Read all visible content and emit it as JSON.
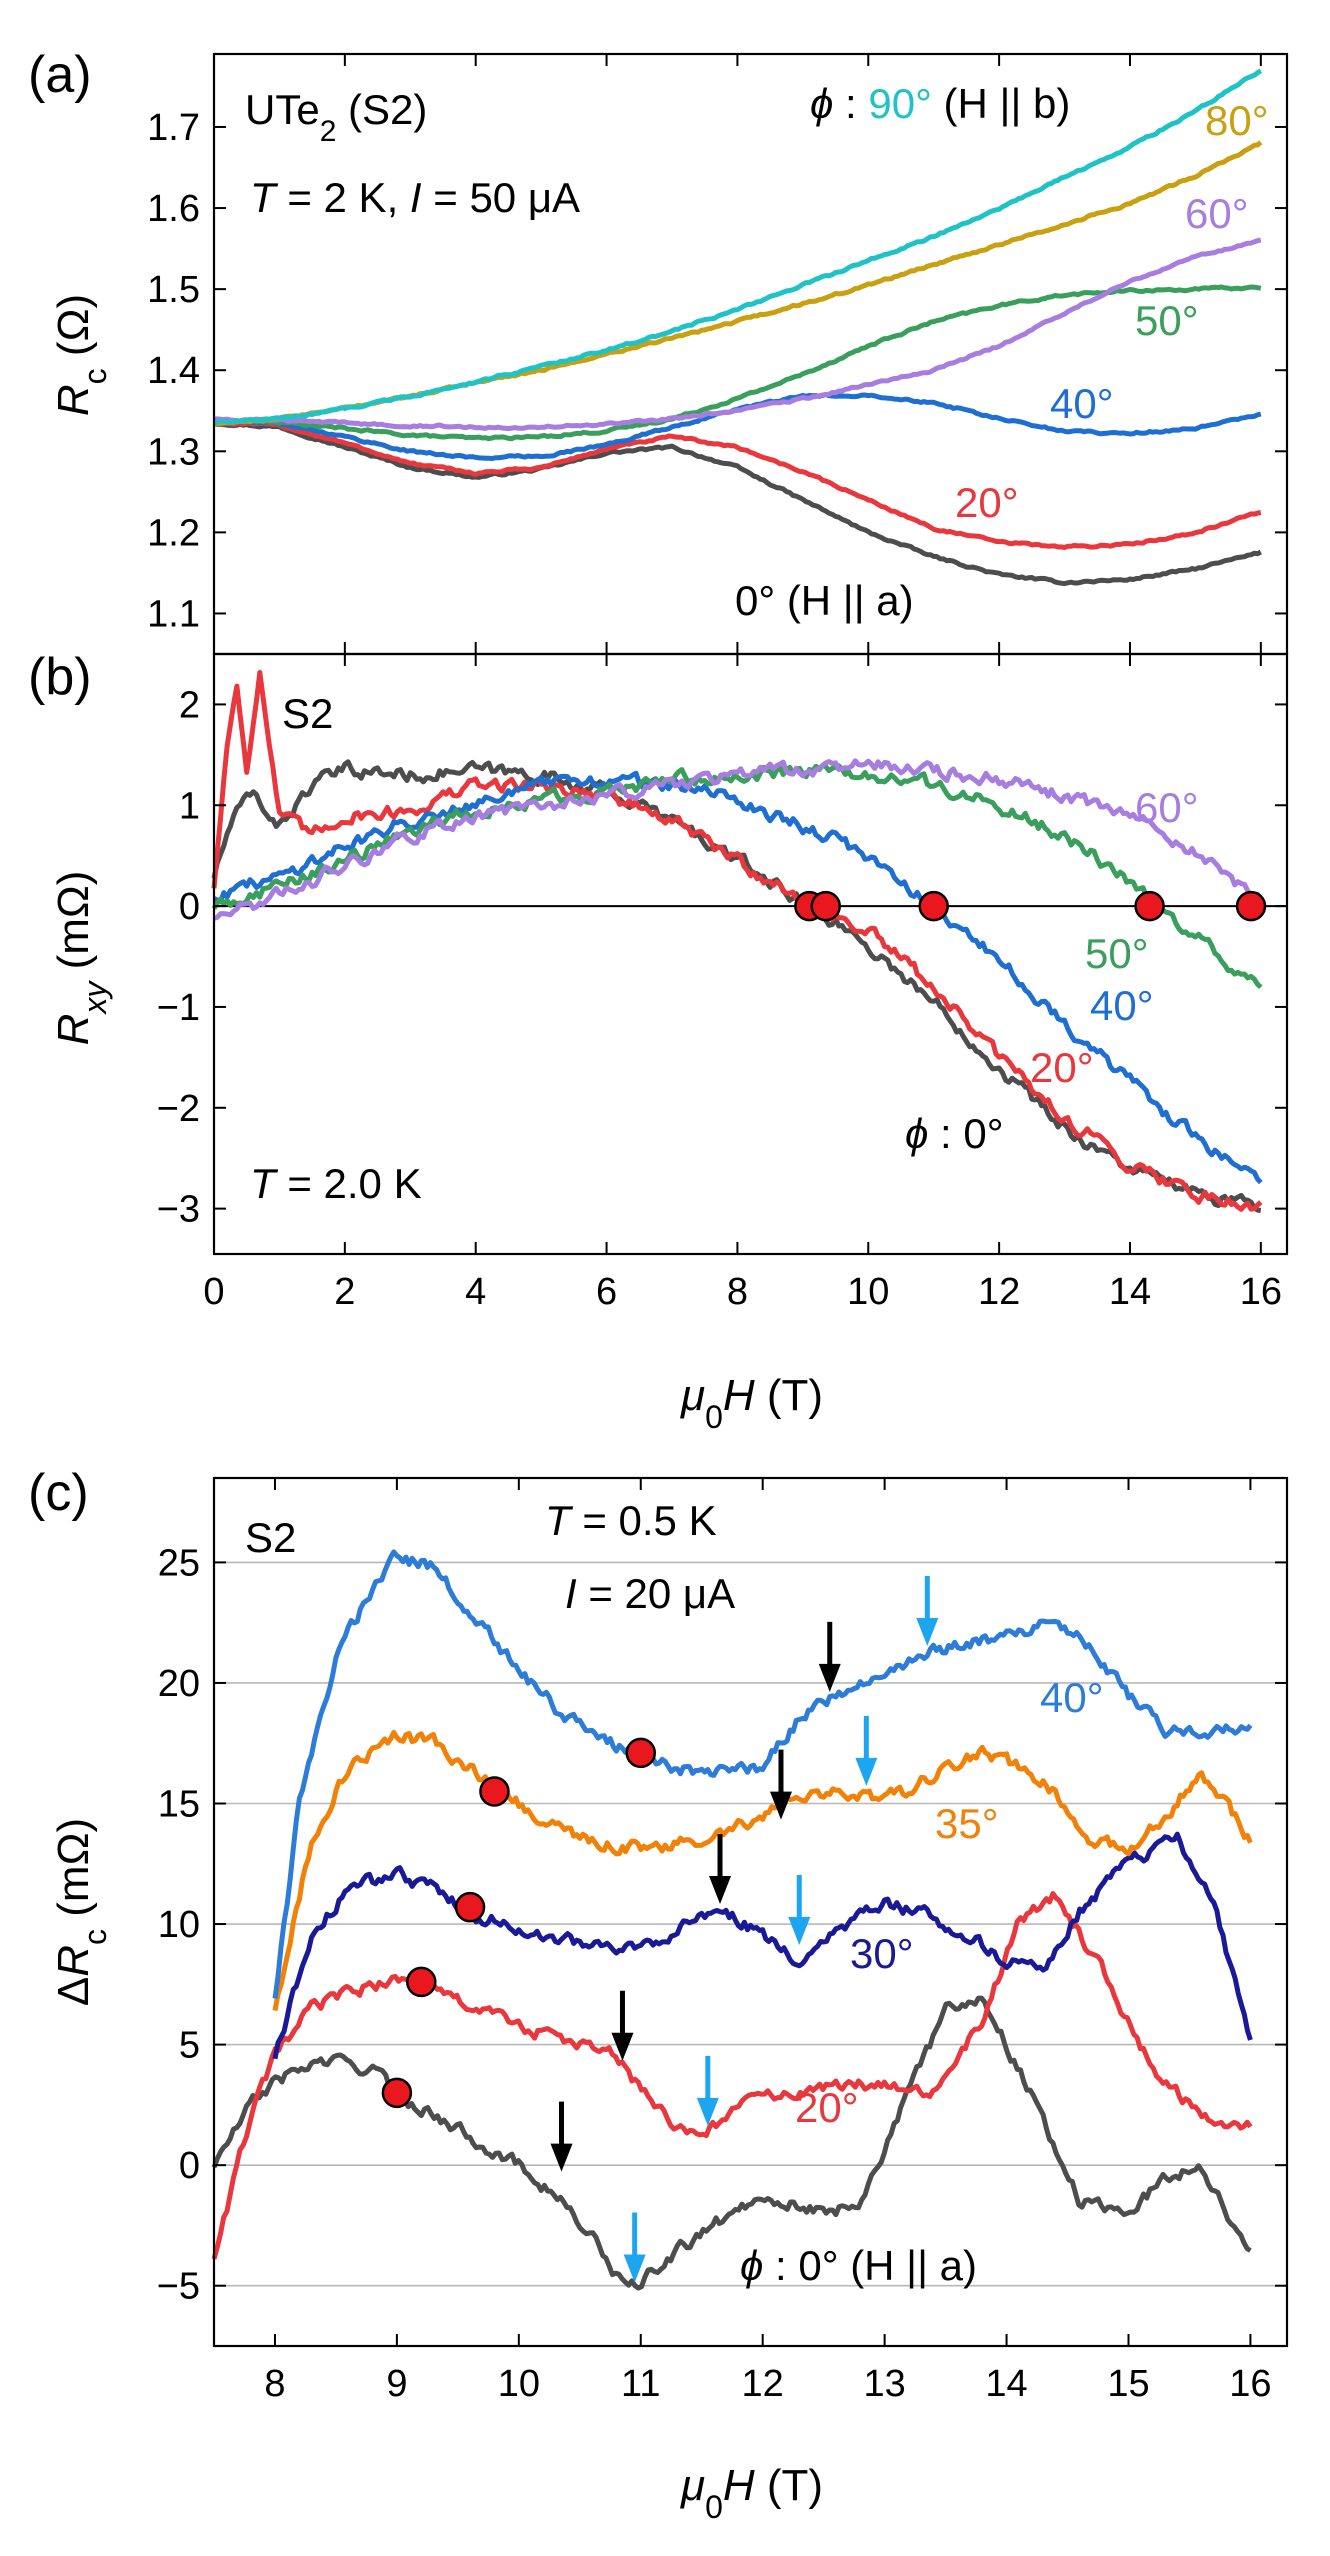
{
  "chart_data": [
    {
      "type": "line",
      "panel_label": "(a)",
      "ylabel": "R_c (Ω)",
      "ylabel_parts": {
        "sym": "R",
        "sub": "c",
        "unit": " (Ω)"
      },
      "xlim": [
        0,
        16.4
      ],
      "ylim": [
        1.05,
        1.79
      ],
      "xticks": [
        0,
        2,
        4,
        6,
        8,
        10,
        12,
        14,
        16
      ],
      "yticks": [
        1.1,
        1.2,
        1.3,
        1.4,
        1.5,
        1.6,
        1.7
      ],
      "ytick_labels": [
        "1.1",
        "1.2",
        "1.3",
        "1.4",
        "1.5",
        "1.6",
        "1.7"
      ],
      "annotations": {
        "sample": "UTe",
        "sample_sub": "2",
        "sample_tail": " (S2)",
        "cond_T": "T",
        "cond_T_val": " = 2 K, ",
        "cond_I": "I",
        "cond_I_val": " = 50 μA",
        "phi_sym": "ϕ",
        "phi_colon": " : ",
        "phi90": "90°",
        "phi90_tail": " (H || b)",
        "l80": "80°",
        "l60": "60°",
        "l50": "50°",
        "l40": "40°",
        "l20": "20°",
        "l0": "0° (H || a)"
      },
      "series": [
        {
          "name": "0°",
          "color": "#4d4d4d",
          "x": [
            0,
            1,
            2,
            3,
            4,
            5,
            6,
            7,
            8,
            9,
            10,
            11,
            12,
            13,
            14,
            15,
            16
          ],
          "y": [
            1.335,
            1.33,
            1.305,
            1.28,
            1.268,
            1.278,
            1.298,
            1.305,
            1.28,
            1.24,
            1.2,
            1.17,
            1.148,
            1.138,
            1.142,
            1.155,
            1.175
          ]
        },
        {
          "name": "20°",
          "color": "#e8383d",
          "x": [
            0,
            1,
            2,
            3,
            4,
            5,
            6,
            7,
            8,
            9,
            10,
            11,
            12,
            13,
            14,
            15,
            16
          ],
          "y": [
            1.335,
            1.332,
            1.31,
            1.285,
            1.273,
            1.28,
            1.303,
            1.318,
            1.305,
            1.275,
            1.24,
            1.205,
            1.188,
            1.182,
            1.185,
            1.2,
            1.225
          ]
        },
        {
          "name": "40°",
          "color": "#1f6fd1",
          "x": [
            0,
            1,
            2,
            3,
            4,
            5,
            6,
            7,
            8,
            9,
            10,
            11,
            12,
            13,
            14,
            15,
            16
          ],
          "y": [
            1.338,
            1.335,
            1.318,
            1.3,
            1.292,
            1.294,
            1.308,
            1.33,
            1.352,
            1.368,
            1.37,
            1.36,
            1.34,
            1.325,
            1.322,
            1.328,
            1.345
          ]
        },
        {
          "name": "50°",
          "color": "#3a9f5c",
          "x": [
            0,
            1,
            2,
            3,
            4,
            5,
            6,
            7,
            8,
            9,
            10,
            11,
            12,
            13,
            14,
            15,
            16
          ],
          "y": [
            1.338,
            1.336,
            1.328,
            1.32,
            1.316,
            1.318,
            1.325,
            1.34,
            1.365,
            1.395,
            1.43,
            1.46,
            1.48,
            1.493,
            1.498,
            1.5,
            1.502
          ]
        },
        {
          "name": "60°",
          "color": "#a77de0",
          "x": [
            0,
            1,
            2,
            3,
            4,
            5,
            6,
            7,
            8,
            9,
            10,
            11,
            12,
            13,
            14,
            15,
            16
          ],
          "y": [
            1.34,
            1.338,
            1.335,
            1.332,
            1.33,
            1.33,
            1.333,
            1.34,
            1.35,
            1.365,
            1.382,
            1.4,
            1.43,
            1.47,
            1.51,
            1.54,
            1.56
          ]
        },
        {
          "name": "80°",
          "color": "#c9a010",
          "x": [
            0,
            1,
            2,
            3,
            4,
            5,
            6,
            7,
            8,
            9,
            10,
            11,
            12,
            13,
            14,
            15,
            16
          ],
          "y": [
            1.335,
            1.34,
            1.353,
            1.368,
            1.385,
            1.4,
            1.42,
            1.44,
            1.46,
            1.482,
            1.505,
            1.53,
            1.555,
            1.58,
            1.605,
            1.64,
            1.68
          ]
        },
        {
          "name": "90°",
          "color": "#1fc3c6",
          "x": [
            0,
            1,
            2,
            3,
            4,
            5,
            6,
            7,
            8,
            9,
            10,
            11,
            12,
            13,
            14,
            15,
            16
          ],
          "y": [
            1.335,
            1.34,
            1.353,
            1.368,
            1.385,
            1.405,
            1.425,
            1.448,
            1.475,
            1.505,
            1.535,
            1.565,
            1.6,
            1.638,
            1.675,
            1.72,
            1.77
          ]
        }
      ]
    },
    {
      "type": "line",
      "panel_label": "(b)",
      "ylabel": "R_xy (mΩ)",
      "ylabel_parts": {
        "sym": "R",
        "sub": "xy",
        "unit": " (mΩ)"
      },
      "xlabel": "μ0H (T)",
      "xlabel_parts": {
        "sym": "μ",
        "sub": "0",
        "tail": "H",
        "unit": " (T)"
      },
      "xlim": [
        0,
        16.4
      ],
      "ylim": [
        -3.45,
        2.5
      ],
      "xticks": [
        0,
        2,
        4,
        6,
        8,
        10,
        12,
        14,
        16
      ],
      "xtick_labels": [
        "0",
        "2",
        "4",
        "6",
        "8",
        "10",
        "12",
        "14",
        "16"
      ],
      "yticks": [
        -3,
        -2,
        -1,
        0,
        1,
        2
      ],
      "ytick_labels": [
        "−3",
        "−2",
        "−1",
        "0",
        "1",
        "2"
      ],
      "zero_line": true,
      "annotations": {
        "sample": "S2",
        "cond_T": "T",
        "cond_T_val": " = 2.0 K",
        "l60": "60°",
        "l50": "50°",
        "l40": "40°",
        "l20": "20°",
        "phi_sym": "ϕ",
        "l0": " : 0°"
      },
      "series": [
        {
          "name": "0°",
          "color": "#4d4d4d",
          "x": [
            0,
            0.3,
            0.6,
            1,
            1.5,
            2,
            3,
            4,
            5,
            6,
            7,
            8,
            9,
            9.5,
            10,
            11,
            12,
            13,
            14,
            15,
            16
          ],
          "y": [
            0.3,
            0.9,
            1.1,
            0.8,
            1.2,
            1.35,
            1.3,
            1.35,
            1.3,
            1.15,
            0.85,
            0.45,
            0.05,
            -0.15,
            -0.4,
            -0.95,
            -1.6,
            -2.2,
            -2.6,
            -2.85,
            -3.0
          ]
        },
        {
          "name": "20°",
          "color": "#e8383d",
          "x": [
            0,
            0.2,
            0.35,
            0.5,
            0.7,
            1,
            1.5,
            2,
            3,
            4,
            5,
            6,
            7,
            8,
            9,
            10,
            11,
            12,
            13,
            14,
            15,
            16
          ],
          "y": [
            0.2,
            1.6,
            2.2,
            1.4,
            2.3,
            0.9,
            0.7,
            0.9,
            0.95,
            1.2,
            1.2,
            1.1,
            0.85,
            0.45,
            0.05,
            -0.25,
            -0.8,
            -1.5,
            -2.1,
            -2.55,
            -2.85,
            -2.98
          ]
        },
        {
          "name": "40°",
          "color": "#1f6fd1",
          "x": [
            0,
            0.5,
            1,
            2,
            3,
            4,
            5,
            6,
            7,
            8,
            9,
            10,
            11,
            12,
            13,
            14,
            15,
            16
          ],
          "y": [
            0.1,
            0.2,
            0.3,
            0.6,
            0.85,
            1.05,
            1.2,
            1.25,
            1.2,
            1.05,
            0.8,
            0.5,
            0.0,
            -0.55,
            -1.15,
            -1.75,
            -2.3,
            -2.7
          ]
        },
        {
          "name": "50°",
          "color": "#3a9f5c",
          "x": [
            0,
            0.5,
            1,
            2,
            3,
            4,
            5,
            6,
            7,
            8,
            9,
            10,
            11,
            12,
            13,
            14,
            15,
            16
          ],
          "y": [
            0.0,
            0.1,
            0.2,
            0.45,
            0.75,
            0.95,
            1.05,
            1.15,
            1.25,
            1.3,
            1.35,
            1.3,
            1.2,
            1.0,
            0.7,
            0.25,
            -0.3,
            -0.85
          ]
        },
        {
          "name": "60°",
          "color": "#a77de0",
          "x": [
            0,
            0.5,
            1,
            2,
            3,
            4,
            5,
            6,
            7,
            8,
            9,
            10,
            11,
            12,
            13,
            14,
            15,
            16
          ],
          "y": [
            -0.1,
            0.0,
            0.1,
            0.4,
            0.7,
            0.9,
            1.0,
            1.1,
            1.2,
            1.3,
            1.35,
            1.4,
            1.35,
            1.25,
            1.1,
            0.9,
            0.55,
            0.0
          ]
        }
      ],
      "zero_crossings": [
        {
          "x": 9.1,
          "y": 0
        },
        {
          "x": 9.35,
          "y": 0
        },
        {
          "x": 11.0,
          "y": 0
        },
        {
          "x": 14.3,
          "y": 0
        },
        {
          "x": 15.85,
          "y": 0
        }
      ],
      "marker_color": "#e8181e"
    },
    {
      "type": "line",
      "panel_label": "(c)",
      "ylabel": "ΔR_c (mΩ)",
      "ylabel_parts": {
        "pre": "Δ",
        "sym": "R",
        "sub": "c",
        "unit": " (mΩ)"
      },
      "xlabel": "μ0H (T)",
      "xlabel_parts": {
        "sym": "μ",
        "sub": "0",
        "tail": "H",
        "unit": " (T)"
      },
      "xlim": [
        7.5,
        16.3
      ],
      "ylim": [
        -7.5,
        28.5
      ],
      "xticks": [
        8,
        9,
        10,
        11,
        12,
        13,
        14,
        15,
        16
      ],
      "xtick_labels": [
        "8",
        "9",
        "10",
        "11",
        "12",
        "13",
        "14",
        "15",
        "16"
      ],
      "yticks": [
        -5,
        0,
        5,
        10,
        15,
        20,
        25
      ],
      "ytick_labels": [
        "−5",
        "0",
        "5",
        "10",
        "15",
        "20",
        "25"
      ],
      "grid": true,
      "annotations": {
        "sample": "S2",
        "cond_T": "T",
        "cond_T_val": " = 0.5 K",
        "cond_I": "I",
        "cond_I_val": " = 20 μA",
        "l40": "40°",
        "l35": "35°",
        "l30": "30°",
        "l20": "20°",
        "phi_sym": "ϕ",
        "l0": " : 0° (H || a)"
      },
      "series": [
        {
          "name": "0°",
          "color": "#4d4d4d",
          "x": [
            7.5,
            7.8,
            8,
            8.3,
            8.5,
            8.8,
            9,
            9.5,
            10,
            10.3,
            10.6,
            10.9,
            11.2,
            11.5,
            12,
            12.5,
            12.8,
            13.2,
            13.5,
            13.8,
            14.2,
            14.6,
            15,
            15.3,
            15.6,
            16
          ],
          "y": [
            0,
            2.5,
            3.5,
            4.2,
            4.3,
            4.0,
            3.0,
            1.5,
            0.0,
            -1.2,
            -3.0,
            -5.3,
            -4.0,
            -2.8,
            -1.2,
            -2.0,
            -1.5,
            3.0,
            6.5,
            7.0,
            3.0,
            -1.5,
            -2.0,
            -0.5,
            0.0,
            -3.8
          ]
        },
        {
          "name": "20°",
          "color": "#e8383d",
          "x": [
            7.5,
            7.8,
            8,
            8.3,
            8.6,
            9,
            9.2,
            9.5,
            10,
            10.5,
            10.8,
            11.1,
            11.3,
            11.5,
            11.8,
            12.2,
            12.6,
            13,
            13.4,
            13.8,
            14.1,
            14.4,
            14.8,
            15.2,
            15.6,
            16
          ],
          "y": [
            -3.8,
            2.0,
            4.5,
            6.5,
            7.2,
            7.7,
            7.5,
            6.8,
            5.8,
            5.0,
            4.5,
            2.5,
            1.5,
            1.2,
            2.5,
            3.0,
            3.2,
            3.5,
            3.0,
            6.0,
            10.0,
            11.2,
            8.0,
            4.0,
            2.0,
            1.5
          ]
        },
        {
          "name": "30°",
          "color": "#1a1a96",
          "x": [
            8,
            8.3,
            8.6,
            9,
            9.3,
            9.6,
            10,
            10.3,
            10.6,
            10.9,
            11.2,
            11.5,
            11.7,
            12,
            12.3,
            12.6,
            13,
            13.3,
            13.7,
            14,
            14.3,
            14.6,
            15,
            15.4,
            15.7,
            16
          ],
          "y": [
            4.5,
            9.5,
            11.5,
            12.0,
            11.5,
            10.5,
            9.8,
            9.5,
            9.0,
            9.0,
            9.5,
            10.2,
            10.5,
            9.5,
            8.5,
            9.8,
            10.8,
            10.5,
            9.5,
            8.5,
            8.2,
            10.5,
            12.5,
            13.5,
            11.0,
            5.0
          ]
        },
        {
          "name": "35°",
          "color": "#f0820a",
          "x": [
            8,
            8.3,
            8.6,
            9,
            9.3,
            9.6,
            10,
            10.4,
            10.8,
            11.2,
            11.5,
            11.8,
            12,
            12.3,
            12.6,
            12.9,
            13.2,
            13.5,
            13.8,
            14.1,
            14.4,
            14.7,
            15,
            15.3,
            15.6,
            16
          ],
          "y": [
            6.5,
            13.5,
            16.5,
            17.8,
            17.5,
            16.5,
            15.0,
            13.8,
            13.2,
            13.2,
            13.5,
            14.0,
            14.5,
            15.2,
            15.5,
            15.3,
            15.5,
            16.5,
            17.0,
            16.5,
            15.5,
            13.5,
            13.0,
            14.5,
            16.3,
            13.5
          ]
        },
        {
          "name": "40°",
          "color": "#2d7dd8",
          "x": [
            8,
            8.2,
            8.5,
            8.8,
            9,
            9.3,
            9.6,
            10,
            10.3,
            10.6,
            11,
            11.3,
            11.6,
            12,
            12.3,
            12.6,
            13,
            13.3,
            13.6,
            14,
            14.4,
            14.7,
            15,
            15.3,
            15.6,
            16
          ],
          "y": [
            7.0,
            15.0,
            21.0,
            24.0,
            25.2,
            24.8,
            23.0,
            20.5,
            19.0,
            17.8,
            17.0,
            16.5,
            16.2,
            16.5,
            18.5,
            19.5,
            20.5,
            21.2,
            21.5,
            22.0,
            22.5,
            21.5,
            19.5,
            18.0,
            18.0,
            18.3
          ]
        }
      ],
      "red_markers": [
        {
          "x": 9.0,
          "y": 3.0
        },
        {
          "x": 9.2,
          "y": 7.6
        },
        {
          "x": 9.6,
          "y": 10.7
        },
        {
          "x": 9.8,
          "y": 15.5
        },
        {
          "x": 11.0,
          "y": 17.1
        }
      ],
      "black_arrows": [
        {
          "x": 10.35,
          "y": -0.6
        },
        {
          "x": 10.85,
          "y": 4.0
        },
        {
          "x": 11.65,
          "y": 10.5
        },
        {
          "x": 12.15,
          "y": 14.0
        },
        {
          "x": 12.55,
          "y": 19.3
        }
      ],
      "blue_arrows": [
        {
          "x": 10.95,
          "y": -5.2
        },
        {
          "x": 11.55,
          "y": 1.3
        },
        {
          "x": 12.3,
          "y": 8.8
        },
        {
          "x": 12.85,
          "y": 15.4
        },
        {
          "x": 13.35,
          "y": 21.2
        }
      ],
      "marker_color": "#e8181e",
      "arrow_colors": {
        "black": "#000000",
        "blue": "#1ea5f0"
      }
    }
  ]
}
